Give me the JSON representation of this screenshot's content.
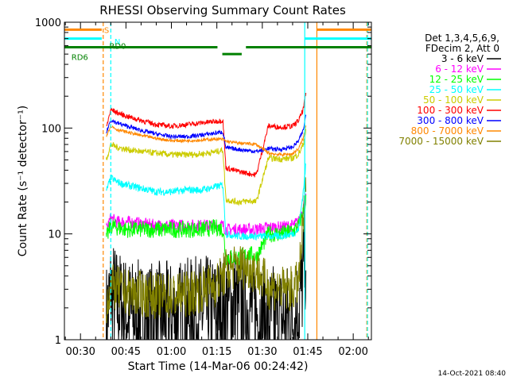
{
  "chart_data": {
    "type": "line",
    "title": "RHESSI Observing Summary Count Rates",
    "xlabel": "Start Time (14-Mar-06 00:24:42)",
    "ylabel": "Count Rate (s⁻¹ detector⁻¹)",
    "y_scale": "log",
    "ylim": [
      1,
      1000
    ],
    "xlim_minutes": [
      24.7,
      126.0
    ],
    "x_ticks": [
      {
        "label": "00:30",
        "minute": 30
      },
      {
        "label": "00:45",
        "minute": 45
      },
      {
        "label": "01:00",
        "minute": 60
      },
      {
        "label": "01:15",
        "minute": 75
      },
      {
        "label": "01:30",
        "minute": 90
      },
      {
        "label": "01:45",
        "minute": 105
      },
      {
        "label": "02:00",
        "minute": 120
      }
    ],
    "y_ticks": [
      {
        "label": "1",
        "value": 1
      },
      {
        "label": "10",
        "value": 10
      },
      {
        "label": "100",
        "value": 100
      },
      {
        "label": "1000",
        "value": 1000
      }
    ],
    "legend": {
      "position": "right",
      "header": [
        "Det 1,3,4,5,6,9,",
        "FDecim 2, Att 0"
      ],
      "entries": [
        {
          "label": "3 - 6 keV",
          "color": "#000000"
        },
        {
          "label": "6 - 12 keV",
          "color": "#ff00ff"
        },
        {
          "label": "12 - 25 keV",
          "color": "#00ff00"
        },
        {
          "label": "25 - 50 keV",
          "color": "#00ffff"
        },
        {
          "label": "50 - 100 keV",
          "color": "#cccc00"
        },
        {
          "label": "100 - 300 keV",
          "color": "#ff0000"
        },
        {
          "label": "300 - 800 keV",
          "color": "#0000ff"
        },
        {
          "label": "800 - 7000 keV",
          "color": "#ff8800"
        },
        {
          "label": "7000 - 15000 keV",
          "color": "#808000"
        }
      ]
    },
    "series": [
      {
        "name": "3 - 6 keV",
        "color": "#000000",
        "points": [
          [
            38.5,
            1.5
          ],
          [
            40,
            2.8
          ],
          [
            42,
            2.2
          ],
          [
            45,
            1.8
          ],
          [
            50,
            1.6
          ],
          [
            55,
            1.6
          ],
          [
            60,
            1.6
          ],
          [
            65,
            1.7
          ],
          [
            70,
            1.8
          ],
          [
            75,
            1.8
          ],
          [
            78,
            2.0
          ],
          [
            82,
            2.2
          ],
          [
            86,
            2.0
          ],
          [
            88,
            1.8
          ],
          [
            92,
            1.5
          ],
          [
            96,
            1.5
          ],
          [
            100,
            1.6
          ],
          [
            102,
            2.0
          ],
          [
            103.5,
            4
          ],
          [
            104.5,
            8
          ]
        ]
      },
      {
        "name": "6 - 12 keV",
        "color": "#ff00ff",
        "points": [
          [
            38.5,
            11
          ],
          [
            40,
            14
          ],
          [
            42,
            13
          ],
          [
            45,
            13
          ],
          [
            50,
            12.5
          ],
          [
            55,
            12
          ],
          [
            60,
            12
          ],
          [
            65,
            12
          ],
          [
            70,
            12
          ],
          [
            75,
            12
          ],
          [
            77,
            12
          ],
          [
            78,
            11
          ],
          [
            82,
            11
          ],
          [
            86,
            11
          ],
          [
            88,
            11
          ],
          [
            92,
            11.5
          ],
          [
            96,
            11.5
          ],
          [
            100,
            12
          ],
          [
            102,
            13
          ],
          [
            103.5,
            18
          ],
          [
            104.5,
            22
          ]
        ]
      },
      {
        "name": "12 - 25 keV",
        "color": "#00ff00",
        "points": [
          [
            38.5,
            9
          ],
          [
            40,
            12
          ],
          [
            42,
            11.5
          ],
          [
            45,
            11
          ],
          [
            50,
            11
          ],
          [
            55,
            11
          ],
          [
            60,
            11
          ],
          [
            65,
            11
          ],
          [
            70,
            11
          ],
          [
            75,
            11.5
          ],
          [
            77,
            11
          ],
          [
            78,
            6
          ],
          [
            82,
            6
          ],
          [
            86,
            6.5
          ],
          [
            88,
            6
          ],
          [
            92,
            10
          ],
          [
            96,
            10
          ],
          [
            100,
            10.5
          ],
          [
            102,
            12
          ],
          [
            103.5,
            16
          ],
          [
            104.5,
            22
          ]
        ]
      },
      {
        "name": "25 - 50 keV",
        "color": "#00ffff",
        "points": [
          [
            38.5,
            25
          ],
          [
            40,
            34
          ],
          [
            42,
            31
          ],
          [
            45,
            29
          ],
          [
            50,
            27
          ],
          [
            55,
            25
          ],
          [
            60,
            25
          ],
          [
            65,
            26
          ],
          [
            70,
            26
          ],
          [
            75,
            28
          ],
          [
            77,
            29
          ],
          [
            78,
            10
          ],
          [
            82,
            9.5
          ],
          [
            86,
            9.5
          ],
          [
            88,
            9.5
          ],
          [
            92,
            9.5
          ],
          [
            96,
            9.5
          ],
          [
            100,
            10
          ],
          [
            102,
            11
          ],
          [
            103.5,
            25
          ],
          [
            104.5,
            50
          ]
        ]
      },
      {
        "name": "50 - 100 keV",
        "color": "#cccc00",
        "points": [
          [
            38.5,
            50
          ],
          [
            40,
            70
          ],
          [
            42,
            66
          ],
          [
            45,
            63
          ],
          [
            50,
            60
          ],
          [
            55,
            58
          ],
          [
            60,
            56
          ],
          [
            65,
            56
          ],
          [
            70,
            57
          ],
          [
            75,
            60
          ],
          [
            77,
            62
          ],
          [
            78,
            21
          ],
          [
            82,
            20
          ],
          [
            86,
            20.5
          ],
          [
            88,
            20
          ],
          [
            92,
            52
          ],
          [
            96,
            51
          ],
          [
            100,
            52
          ],
          [
            102,
            57
          ],
          [
            103.5,
            70
          ],
          [
            104.5,
            100
          ]
        ]
      },
      {
        "name": "100 - 300 keV",
        "color": "#ff0000",
        "points": [
          [
            38.5,
            100
          ],
          [
            40,
            150
          ],
          [
            42,
            140
          ],
          [
            45,
            130
          ],
          [
            50,
            118
          ],
          [
            55,
            108
          ],
          [
            60,
            104
          ],
          [
            65,
            108
          ],
          [
            70,
            112
          ],
          [
            75,
            116
          ],
          [
            77,
            118
          ],
          [
            78,
            42
          ],
          [
            82,
            39
          ],
          [
            86,
            37
          ],
          [
            88,
            36
          ],
          [
            92,
            105
          ],
          [
            96,
            102
          ],
          [
            100,
            104
          ],
          [
            102,
            118
          ],
          [
            103.5,
            150
          ],
          [
            104.5,
            220
          ]
        ]
      },
      {
        "name": "300 - 800 keV",
        "color": "#0000ff",
        "points": [
          [
            38.5,
            90
          ],
          [
            40,
            120
          ],
          [
            42,
            112
          ],
          [
            45,
            105
          ],
          [
            50,
            95
          ],
          [
            55,
            88
          ],
          [
            60,
            83
          ],
          [
            65,
            83
          ],
          [
            70,
            86
          ],
          [
            75,
            90
          ],
          [
            77,
            92
          ],
          [
            78,
            65
          ],
          [
            82,
            63
          ],
          [
            86,
            61
          ],
          [
            88,
            60
          ],
          [
            92,
            64
          ],
          [
            96,
            63
          ],
          [
            100,
            66
          ],
          [
            102,
            76
          ],
          [
            103.5,
            95
          ],
          [
            104.5,
            140
          ]
        ]
      },
      {
        "name": "800 - 7000 keV",
        "color": "#ff8800",
        "points": [
          [
            38.5,
            85
          ],
          [
            40,
            105
          ],
          [
            42,
            97
          ],
          [
            45,
            92
          ],
          [
            50,
            85
          ],
          [
            55,
            80
          ],
          [
            60,
            76
          ],
          [
            65,
            76
          ],
          [
            70,
            77
          ],
          [
            75,
            79
          ],
          [
            77,
            78
          ],
          [
            78,
            75
          ],
          [
            82,
            72
          ],
          [
            86,
            71
          ],
          [
            88,
            70
          ],
          [
            92,
            58
          ],
          [
            96,
            56
          ],
          [
            100,
            57
          ],
          [
            102,
            64
          ],
          [
            103.5,
            80
          ],
          [
            104.5,
            110
          ]
        ]
      },
      {
        "name": "7000 - 15000 keV",
        "color": "#808000",
        "points": [
          [
            38.5,
            2.2
          ],
          [
            40,
            3.2
          ],
          [
            42,
            3.0
          ],
          [
            45,
            2.8
          ],
          [
            50,
            2.7
          ],
          [
            55,
            2.6
          ],
          [
            60,
            2.6
          ],
          [
            65,
            2.7
          ],
          [
            70,
            3.0
          ],
          [
            75,
            3.4
          ],
          [
            77,
            4.0
          ],
          [
            78,
            4.5
          ],
          [
            82,
            5.0
          ],
          [
            86,
            4.8
          ],
          [
            88,
            4.5
          ],
          [
            92,
            3.2
          ],
          [
            96,
            3.0
          ],
          [
            100,
            3.0
          ],
          [
            102,
            3.5
          ],
          [
            103.5,
            12
          ],
          [
            104.5,
            28
          ]
        ]
      }
    ],
    "annotations": {
      "labels": [
        {
          "text": "S",
          "color": "#ff8800"
        },
        {
          "text": "N",
          "color": "#00ffff"
        },
        {
          "text": "RD0",
          "color": "#008000"
        },
        {
          "text": "RD6",
          "color": "#008000"
        }
      ],
      "s_bars": {
        "color": "#ff8800",
        "level": 850,
        "segments": [
          [
            24.7,
            37
          ],
          [
            108,
            126
          ]
        ]
      },
      "n_bars": {
        "color": "#00ffff",
        "level": 700,
        "segments": [
          [
            24.7,
            37
          ],
          [
            104,
            126
          ]
        ]
      },
      "rd_bars": {
        "color": "#008000",
        "level": 580,
        "segments": [
          [
            24.7,
            75.2
          ],
          [
            76.8,
            83.2
          ],
          [
            84.6,
            126
          ]
        ],
        "mid_level": 500
      },
      "vlines": [
        {
          "minute": 37.5,
          "color": "#ff8800",
          "dash": true
        },
        {
          "minute": 40.0,
          "color": "#00ffff",
          "dash": true
        },
        {
          "minute": 104.0,
          "color": "#00ffff",
          "dash": false
        },
        {
          "minute": 108.0,
          "color": "#ff8800",
          "dash": false
        },
        {
          "minute": 124.5,
          "color": "#ff8800",
          "dash": true
        },
        {
          "minute": 124.7,
          "color": "#00ffff",
          "dash": true
        }
      ]
    },
    "grid": false
  },
  "footer": {
    "timestamp": "14-Oct-2021 08:40"
  }
}
